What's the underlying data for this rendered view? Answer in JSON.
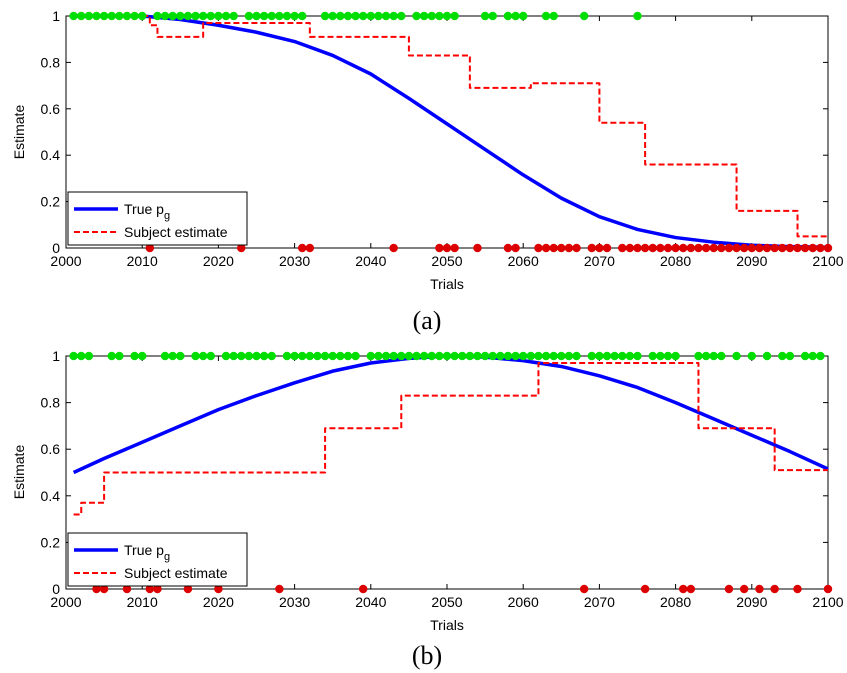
{
  "chart_data": [
    {
      "type": "line",
      "caption": "(a)",
      "xlabel": "Trials",
      "ylabel": "Estimate",
      "xlim": [
        2000,
        2100
      ],
      "ylim": [
        0,
        1
      ],
      "xticks": [
        2000,
        2010,
        2020,
        2030,
        2040,
        2050,
        2060,
        2070,
        2080,
        2090,
        2100
      ],
      "yticks": [
        0,
        0.2,
        0.4,
        0.6,
        0.8,
        1
      ],
      "grid": false,
      "legend": {
        "placement": "bottom-left",
        "entries": [
          {
            "label": "True p",
            "sub": "g",
            "style": "solid-blue"
          },
          {
            "label": "Subject estimate",
            "style": "dashed-red"
          }
        ]
      },
      "series": [
        {
          "name": "True p_g",
          "color": "#0000ff",
          "x": [
            2010,
            2015,
            2020,
            2025,
            2030,
            2035,
            2040,
            2045,
            2050,
            2055,
            2060,
            2065,
            2070,
            2075,
            2080,
            2085,
            2090,
            2095,
            2100
          ],
          "y": [
            1.0,
            0.985,
            0.96,
            0.93,
            0.89,
            0.83,
            0.75,
            0.645,
            0.535,
            0.425,
            0.315,
            0.215,
            0.135,
            0.08,
            0.045,
            0.025,
            0.012,
            0.006,
            0.003
          ]
        },
        {
          "name": "Subject estimate",
          "color": "#ff0000",
          "step": true,
          "x": [
            2010,
            2011,
            2012,
            2017,
            2018,
            2031,
            2032,
            2044,
            2045,
            2052,
            2053,
            2060,
            2061,
            2069,
            2070,
            2075,
            2076,
            2087,
            2088,
            2095,
            2096,
            2100
          ],
          "y": [
            1.0,
            0.96,
            0.91,
            0.91,
            0.97,
            0.97,
            0.91,
            0.91,
            0.83,
            0.83,
            0.69,
            0.69,
            0.71,
            0.71,
            0.54,
            0.54,
            0.36,
            0.36,
            0.16,
            0.16,
            0.05,
            0.05
          ]
        }
      ],
      "outcomes_1": {
        "color": "#00dd00",
        "x": [
          2001,
          2002,
          2003,
          2004,
          2005,
          2006,
          2007,
          2008,
          2009,
          2010,
          2012,
          2013,
          2014,
          2015,
          2016,
          2017,
          2018,
          2019,
          2020,
          2021,
          2022,
          2024,
          2025,
          2026,
          2027,
          2028,
          2029,
          2030,
          2031,
          2034,
          2035,
          2036,
          2037,
          2038,
          2039,
          2040,
          2041,
          2042,
          2043,
          2044,
          2046,
          2047,
          2048,
          2049,
          2050,
          2051,
          2055,
          2056,
          2058,
          2059,
          2060,
          2063,
          2064,
          2068,
          2075
        ]
      },
      "outcomes_0": {
        "color": "#dd0000",
        "x": [
          2011,
          2023,
          2031,
          2032,
          2043,
          2049,
          2050,
          2051,
          2054,
          2058,
          2059,
          2062,
          2063,
          2064,
          2065,
          2066,
          2067,
          2069,
          2070,
          2071,
          2073,
          2074,
          2075,
          2076,
          2077,
          2078,
          2079,
          2080,
          2081,
          2082,
          2083,
          2084,
          2085,
          2086,
          2087,
          2088,
          2089,
          2090,
          2091,
          2092,
          2093,
          2094,
          2095,
          2096,
          2097,
          2098,
          2099,
          2100
        ]
      }
    },
    {
      "type": "line",
      "caption": "(b)",
      "xlabel": "Trials",
      "ylabel": "Estimate",
      "xlim": [
        2000,
        2100
      ],
      "ylim": [
        0,
        1
      ],
      "xticks": [
        2000,
        2010,
        2020,
        2030,
        2040,
        2050,
        2060,
        2070,
        2080,
        2090,
        2100
      ],
      "yticks": [
        0,
        0.2,
        0.4,
        0.6,
        0.8,
        1
      ],
      "grid": false,
      "legend": {
        "placement": "bottom-left",
        "entries": [
          {
            "label": "True p",
            "sub": "g",
            "style": "solid-blue"
          },
          {
            "label": "Subject estimate",
            "style": "dashed-red"
          }
        ]
      },
      "series": [
        {
          "name": "True p_g",
          "color": "#0000ff",
          "x": [
            2001,
            2005,
            2010,
            2015,
            2020,
            2025,
            2030,
            2035,
            2040,
            2045,
            2050,
            2055,
            2060,
            2065,
            2070,
            2075,
            2080,
            2085,
            2090,
            2095,
            2100
          ],
          "y": [
            0.5,
            0.56,
            0.63,
            0.7,
            0.77,
            0.83,
            0.885,
            0.935,
            0.97,
            0.99,
            1.0,
            0.995,
            0.98,
            0.955,
            0.915,
            0.865,
            0.8,
            0.73,
            0.66,
            0.59,
            0.515
          ]
        },
        {
          "name": "Subject estimate",
          "color": "#ff0000",
          "step": true,
          "x": [
            2001,
            2002,
            2003,
            2004,
            2005,
            2033,
            2034,
            2043,
            2044,
            2061,
            2062,
            2082,
            2083,
            2092,
            2093,
            2100
          ],
          "y": [
            0.32,
            0.37,
            0.37,
            0.37,
            0.5,
            0.5,
            0.69,
            0.69,
            0.83,
            0.83,
            0.97,
            0.97,
            0.69,
            0.69,
            0.51,
            0.51
          ]
        }
      ],
      "outcomes_1": {
        "color": "#00dd00",
        "x": [
          2001,
          2002,
          2003,
          2006,
          2007,
          2009,
          2010,
          2013,
          2014,
          2015,
          2017,
          2018,
          2019,
          2021,
          2022,
          2023,
          2024,
          2025,
          2026,
          2027,
          2029,
          2030,
          2031,
          2032,
          2033,
          2034,
          2035,
          2036,
          2037,
          2038,
          2040,
          2041,
          2042,
          2043,
          2044,
          2045,
          2046,
          2047,
          2048,
          2049,
          2050,
          2051,
          2052,
          2053,
          2054,
          2055,
          2056,
          2057,
          2058,
          2059,
          2060,
          2061,
          2062,
          2063,
          2064,
          2065,
          2066,
          2067,
          2069,
          2070,
          2071,
          2072,
          2073,
          2074,
          2075,
          2077,
          2078,
          2079,
          2080,
          2083,
          2084,
          2085,
          2086,
          2088,
          2090,
          2092,
          2094,
          2095,
          2097,
          2098,
          2099
        ]
      },
      "outcomes_0": {
        "color": "#dd0000",
        "x": [
          2004,
          2005,
          2008,
          2011,
          2012,
          2016,
          2020,
          2028,
          2039,
          2068,
          2076,
          2081,
          2082,
          2087,
          2089,
          2091,
          2093,
          2096,
          2100
        ]
      }
    }
  ]
}
